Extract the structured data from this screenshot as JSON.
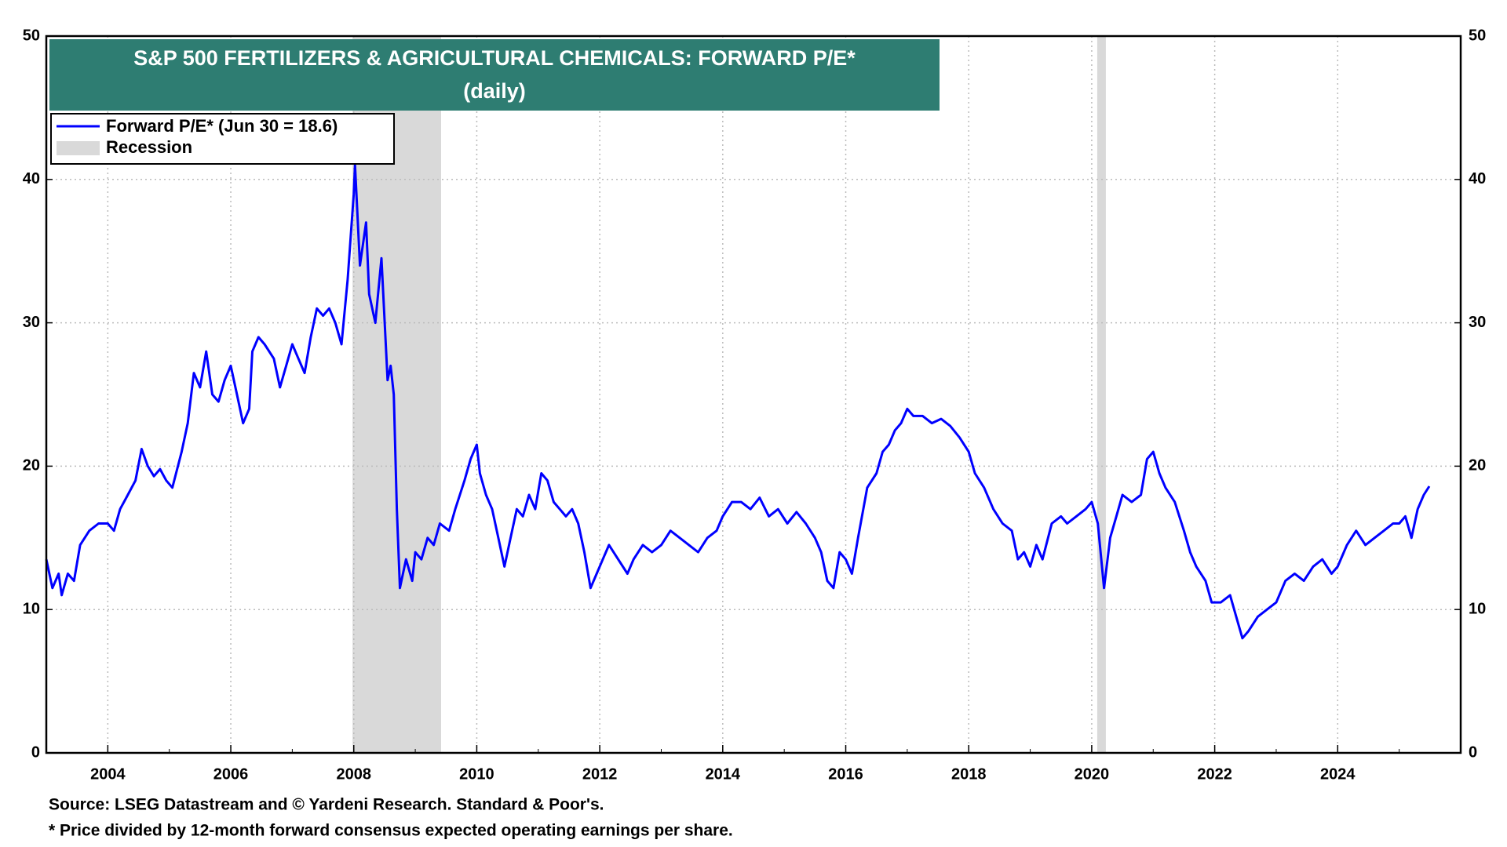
{
  "chart_data": {
    "type": "line",
    "title": "S&P 500 FERTILIZERS & AGRICULTURAL CHEMICALS: FORWARD P/E*",
    "subtitle": "(daily)",
    "source": "Source: LSEG Datastream and © Yardeni Research. Standard & Poor's.",
    "note": "* Price divided by 12-month forward consensus expected operating earnings per share.",
    "x": [
      2003.0,
      2003.1,
      2003.2,
      2003.25,
      2003.35,
      2003.45,
      2003.55,
      2003.7,
      2003.85,
      2004.0,
      2004.1,
      2004.2,
      2004.3,
      2004.45,
      2004.55,
      2004.65,
      2004.75,
      2004.85,
      2004.95,
      2005.05,
      2005.2,
      2005.3,
      2005.4,
      2005.5,
      2005.6,
      2005.7,
      2005.8,
      2005.9,
      2006.0,
      2006.1,
      2006.2,
      2006.3,
      2006.35,
      2006.45,
      2006.55,
      2006.7,
      2006.8,
      2006.9,
      2007.0,
      2007.1,
      2007.2,
      2007.3,
      2007.4,
      2007.5,
      2007.6,
      2007.7,
      2007.8,
      2007.9,
      2007.95,
      2008.0,
      2008.02,
      2008.1,
      2008.2,
      2008.25,
      2008.35,
      2008.45,
      2008.55,
      2008.6,
      2008.65,
      2008.7,
      2008.75,
      2008.85,
      2008.95,
      2009.0,
      2009.1,
      2009.2,
      2009.3,
      2009.4,
      2009.55,
      2009.65,
      2009.8,
      2009.9,
      2010.0,
      2010.05,
      2010.15,
      2010.25,
      2010.35,
      2010.45,
      2010.55,
      2010.65,
      2010.75,
      2010.85,
      2010.95,
      2011.05,
      2011.15,
      2011.25,
      2011.35,
      2011.45,
      2011.55,
      2011.65,
      2011.75,
      2011.85,
      2011.95,
      2012.05,
      2012.15,
      2012.3,
      2012.45,
      2012.55,
      2012.7,
      2012.85,
      2013.0,
      2013.15,
      2013.3,
      2013.45,
      2013.6,
      2013.75,
      2013.9,
      2014.0,
      2014.15,
      2014.3,
      2014.45,
      2014.6,
      2014.75,
      2014.9,
      2015.05,
      2015.2,
      2015.35,
      2015.5,
      2015.6,
      2015.7,
      2015.8,
      2015.9,
      2016.0,
      2016.1,
      2016.2,
      2016.35,
      2016.5,
      2016.6,
      2016.7,
      2016.8,
      2016.9,
      2017.0,
      2017.1,
      2017.25,
      2017.4,
      2017.55,
      2017.7,
      2017.85,
      2018.0,
      2018.1,
      2018.25,
      2018.4,
      2018.55,
      2018.7,
      2018.8,
      2018.9,
      2019.0,
      2019.1,
      2019.2,
      2019.35,
      2019.5,
      2019.6,
      2019.75,
      2019.9,
      2020.0,
      2020.1,
      2020.2,
      2020.3,
      2020.4,
      2020.5,
      2020.65,
      2020.8,
      2020.9,
      2021.0,
      2021.1,
      2021.2,
      2021.35,
      2021.5,
      2021.6,
      2021.7,
      2021.85,
      2021.95,
      2022.1,
      2022.25,
      2022.35,
      2022.45,
      2022.55,
      2022.7,
      2022.85,
      2023.0,
      2023.15,
      2023.3,
      2023.45,
      2023.6,
      2023.75,
      2023.9,
      2024.0,
      2024.15,
      2024.3,
      2024.45,
      2024.6,
      2024.75,
      2024.9,
      2025.0,
      2025.1,
      2025.2,
      2025.3,
      2025.4,
      2025.49
    ],
    "series": [
      {
        "name": "Forward P/E* (Jun 30 = 18.6)",
        "color": "#0000ff",
        "values": [
          13.5,
          11.5,
          12.5,
          11,
          12.5,
          12,
          14.5,
          15.5,
          16,
          16,
          15.5,
          17,
          17.8,
          19,
          21.2,
          20,
          19.3,
          19.8,
          19,
          18.5,
          21,
          23,
          26.5,
          25.5,
          28,
          25,
          24.5,
          26,
          27,
          25,
          23,
          24,
          28,
          29,
          28.5,
          27.5,
          25.5,
          27,
          28.5,
          27.5,
          26.5,
          29,
          31,
          30.5,
          31,
          30,
          28.5,
          33,
          36,
          39,
          41,
          34,
          37,
          32,
          30,
          34.5,
          26,
          27,
          25,
          17,
          11.5,
          13.5,
          12,
          14,
          13.5,
          15,
          14.5,
          16,
          15.5,
          17,
          19,
          20.5,
          21.5,
          19.5,
          18,
          17,
          15,
          13,
          15,
          17,
          16.5,
          18,
          17,
          19.5,
          19,
          17.5,
          17,
          16.5,
          17,
          16,
          14,
          11.5,
          12.5,
          13.5,
          14.5,
          13.5,
          12.5,
          13.5,
          14.5,
          14,
          14.5,
          15.5,
          15,
          14.5,
          14,
          15,
          15.5,
          16.5,
          17.5,
          17.5,
          17,
          17.8,
          16.5,
          17,
          16,
          16.8,
          16,
          15,
          14,
          12,
          11.5,
          14,
          13.5,
          12.5,
          15,
          18.5,
          19.5,
          21,
          21.5,
          22.5,
          23,
          24,
          23.5,
          23.5,
          23,
          23.3,
          22.8,
          22,
          21,
          19.5,
          18.5,
          17,
          16,
          15.5,
          13.5,
          14,
          13,
          14.5,
          13.5,
          16,
          16.5,
          16,
          16.5,
          17,
          17.5,
          16,
          11.5,
          15,
          16.5,
          18,
          17.5,
          18,
          20.5,
          21,
          19.5,
          18.5,
          17.5,
          15.5,
          14,
          13,
          12,
          10.5,
          10.5,
          11,
          9.5,
          8,
          8.5,
          9.5,
          10,
          10.5,
          12,
          12.5,
          12,
          13,
          13.5,
          12.5,
          13,
          14.5,
          15.5,
          14.5,
          15,
          15.5,
          16,
          16,
          16.5,
          15,
          17,
          18,
          18.6
        ]
      }
    ],
    "recessions": {
      "name": "Recession",
      "color": "#d9d9d9",
      "spans": [
        [
          2007.98,
          2009.42
        ],
        [
          2020.09,
          2020.23
        ]
      ]
    },
    "xlim": [
      2003,
      2026
    ],
    "xticks": [
      2004,
      2006,
      2008,
      2010,
      2012,
      2014,
      2016,
      2018,
      2020,
      2022,
      2024
    ],
    "ylim": [
      0,
      50
    ],
    "yticks": [
      0,
      10,
      20,
      30,
      40,
      50
    ],
    "y2lim": [
      0,
      50
    ],
    "y2ticks": [
      0,
      10,
      20,
      30,
      40,
      50
    ],
    "grid": true
  }
}
